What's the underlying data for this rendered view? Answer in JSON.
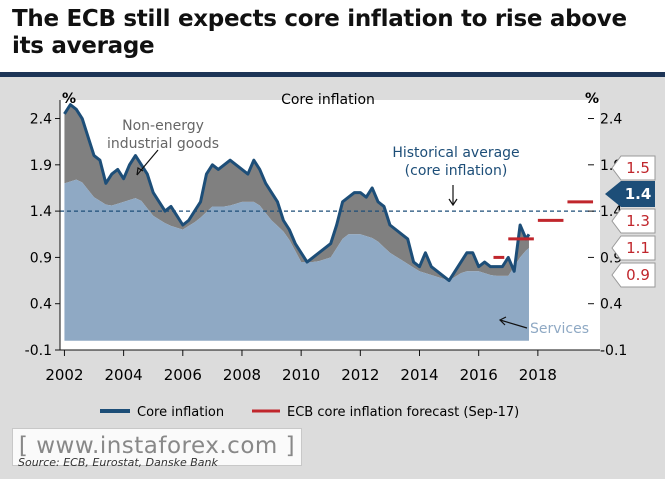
{
  "title": "The ECB still expects core inflation to rise above its average",
  "source": "Source: ECB, Eurostat, Danske Bank",
  "watermark": "[ www.instaforex.com ]",
  "colors": {
    "core": "#1d4e78",
    "non_energy": "#808080",
    "services": "#8fa9c4",
    "forecast": "#c0262c",
    "avg_line": "#1d4e78",
    "callout_dark": "#1d4e78"
  },
  "chart_data": {
    "type": "area",
    "title": "Core inflation",
    "ylabel_left": "%",
    "ylabel_right": "%",
    "ylim": [
      -0.1,
      2.6
    ],
    "yticks": [
      "2.4",
      "1.9",
      "1.4",
      "0.9",
      "0.4",
      "-0.1"
    ],
    "xticks": [
      "2002",
      "2004",
      "2006",
      "2008",
      "2010",
      "2012",
      "2014",
      "2016",
      "2018"
    ],
    "historical_average": 1.4,
    "series": [
      {
        "name": "Core inflation",
        "x": [
          2002.0,
          2002.2,
          2002.4,
          2002.6,
          2002.8,
          2003.0,
          2003.2,
          2003.4,
          2003.6,
          2003.8,
          2004.0,
          2004.2,
          2004.4,
          2004.6,
          2004.8,
          2005.0,
          2005.2,
          2005.4,
          2005.6,
          2005.8,
          2006.0,
          2006.2,
          2006.4,
          2006.6,
          2006.8,
          2007.0,
          2007.2,
          2007.4,
          2007.6,
          2007.8,
          2008.0,
          2008.2,
          2008.4,
          2008.6,
          2008.8,
          2009.0,
          2009.2,
          2009.4,
          2009.6,
          2009.8,
          2010.0,
          2010.2,
          2010.4,
          2010.6,
          2010.8,
          2011.0,
          2011.2,
          2011.4,
          2011.6,
          2011.8,
          2012.0,
          2012.2,
          2012.4,
          2012.6,
          2012.8,
          2013.0,
          2013.2,
          2013.4,
          2013.6,
          2013.8,
          2014.0,
          2014.2,
          2014.4,
          2014.6,
          2014.8,
          2015.0,
          2015.2,
          2015.4,
          2015.6,
          2015.8,
          2016.0,
          2016.2,
          2016.4,
          2016.6,
          2016.8,
          2017.0,
          2017.2,
          2017.4,
          2017.6,
          2017.7
        ],
        "values": [
          2.45,
          2.55,
          2.5,
          2.4,
          2.2,
          2.0,
          1.95,
          1.7,
          1.8,
          1.85,
          1.75,
          1.9,
          2.0,
          1.9,
          1.8,
          1.6,
          1.5,
          1.4,
          1.45,
          1.35,
          1.25,
          1.3,
          1.4,
          1.5,
          1.8,
          1.9,
          1.85,
          1.9,
          1.95,
          1.9,
          1.85,
          1.8,
          1.95,
          1.85,
          1.7,
          1.6,
          1.5,
          1.3,
          1.2,
          1.05,
          0.95,
          0.85,
          0.9,
          0.95,
          1.0,
          1.05,
          1.25,
          1.5,
          1.55,
          1.6,
          1.6,
          1.55,
          1.65,
          1.5,
          1.45,
          1.25,
          1.2,
          1.15,
          1.1,
          0.85,
          0.8,
          0.95,
          0.8,
          0.75,
          0.7,
          0.65,
          0.75,
          0.85,
          0.95,
          0.95,
          0.8,
          0.85,
          0.8,
          0.8,
          0.8,
          0.9,
          0.75,
          1.25,
          1.1,
          1.15
        ]
      },
      {
        "name": "Non-energy industrial goods",
        "x": [
          2002.0,
          2002.5,
          2003.0,
          2003.5,
          2004.0,
          2004.5,
          2005.0,
          2005.5,
          2006.0,
          2006.5,
          2007.0,
          2007.5,
          2008.0,
          2008.5,
          2009.0,
          2009.5,
          2010.0,
          2010.5,
          2011.0,
          2011.5,
          2012.0,
          2012.5,
          2013.0,
          2013.5,
          2014.0,
          2014.5,
          2015.0,
          2015.5,
          2016.0,
          2016.5,
          2017.0,
          2017.5,
          2017.7
        ],
        "values": [
          0.65,
          0.7,
          0.5,
          0.35,
          0.2,
          0.25,
          0.15,
          0.15,
          0.15,
          0.25,
          0.4,
          0.45,
          0.35,
          0.3,
          0.25,
          0.15,
          0.05,
          0.1,
          0.2,
          0.4,
          0.45,
          0.4,
          0.3,
          0.2,
          0.1,
          0.05,
          0.05,
          0.15,
          0.15,
          0.1,
          0.1,
          0.15,
          0.15
        ]
      },
      {
        "name": "Services",
        "x": [
          2002.0,
          2002.5,
          2003.0,
          2003.5,
          2004.0,
          2004.5,
          2005.0,
          2005.5,
          2006.0,
          2006.5,
          2007.0,
          2007.5,
          2008.0,
          2008.5,
          2009.0,
          2009.5,
          2010.0,
          2010.5,
          2011.0,
          2011.5,
          2012.0,
          2012.5,
          2013.0,
          2013.5,
          2014.0,
          2014.5,
          2015.0,
          2015.5,
          2016.0,
          2016.5,
          2017.0,
          2017.5,
          2017.7
        ],
        "values": [
          1.7,
          1.75,
          1.55,
          1.45,
          1.5,
          1.55,
          1.35,
          1.25,
          1.2,
          1.3,
          1.45,
          1.45,
          1.5,
          1.5,
          1.3,
          1.15,
          0.85,
          0.85,
          0.9,
          1.15,
          1.15,
          1.1,
          0.95,
          0.85,
          0.75,
          0.7,
          0.65,
          0.75,
          0.75,
          0.7,
          0.7,
          0.95,
          1.0
        ]
      }
    ],
    "forecast": {
      "name": "ECB core inflation forecast (Sep-17)",
      "segments": [
        {
          "x": [
            2016.5,
            2017.0
          ],
          "y": 0.9
        },
        {
          "x": [
            2017.0,
            2018.0
          ],
          "y": 1.1
        },
        {
          "x": [
            2018.0,
            2019.0
          ],
          "y": 1.3
        },
        {
          "x": [
            2019.0,
            2020.0
          ],
          "y": 1.5
        }
      ]
    },
    "callouts": [
      "1.5",
      "1.4",
      "1.3",
      "1.1",
      "0.9"
    ],
    "annotations": {
      "non_energy": "Non-energy industrial goods",
      "historical_average": "Historical average (core inflation)",
      "services": "Services"
    },
    "legend": {
      "placement": "bottom",
      "core_label": "Core inflation",
      "forecast_label": "ECB core inflation forecast (Sep-17)"
    }
  }
}
